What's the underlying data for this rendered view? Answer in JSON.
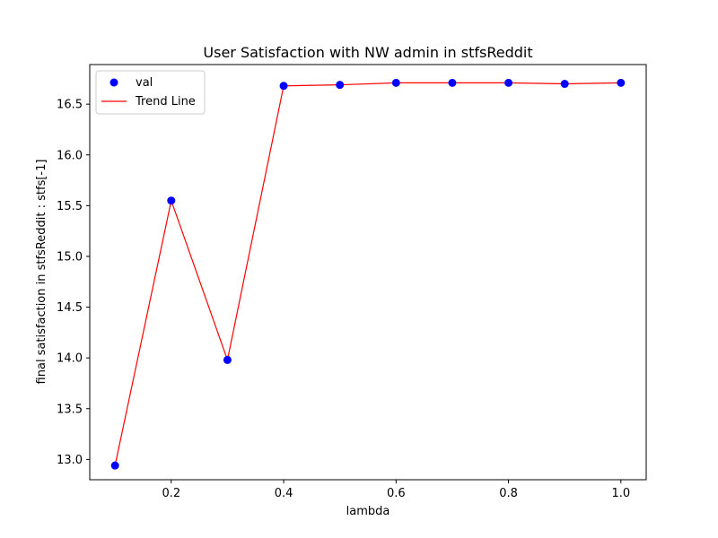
{
  "chart_data": {
    "type": "scatter",
    "title": "User Satisfaction with NW admin in stfsReddit",
    "xlabel": "lambda",
    "ylabel": "final satisfaction in stfsReddit : stfs[-1]",
    "x": [
      0.1,
      0.2,
      0.3,
      0.4,
      0.5,
      0.6,
      0.7,
      0.8,
      0.9,
      1.0
    ],
    "series": [
      {
        "name": "val",
        "style": "markers",
        "color": "#0000ff",
        "values": [
          12.94,
          15.55,
          13.98,
          16.68,
          16.69,
          16.71,
          16.71,
          16.71,
          16.7,
          16.71
        ]
      },
      {
        "name": "Trend Line",
        "style": "line",
        "color": "#ff0000",
        "values": [
          12.94,
          15.55,
          13.98,
          16.68,
          16.69,
          16.71,
          16.71,
          16.71,
          16.7,
          16.71
        ]
      }
    ],
    "xlim": [
      0.055,
      1.045
    ],
    "ylim": [
      12.8,
      16.89
    ],
    "xticks": [
      "0.2",
      "0.4",
      "0.6",
      "0.8",
      "1.0"
    ],
    "yticks": [
      "13.0",
      "13.5",
      "14.0",
      "14.5",
      "15.0",
      "15.5",
      "16.0",
      "16.5"
    ],
    "grid": false,
    "legend_position": "top-left"
  }
}
